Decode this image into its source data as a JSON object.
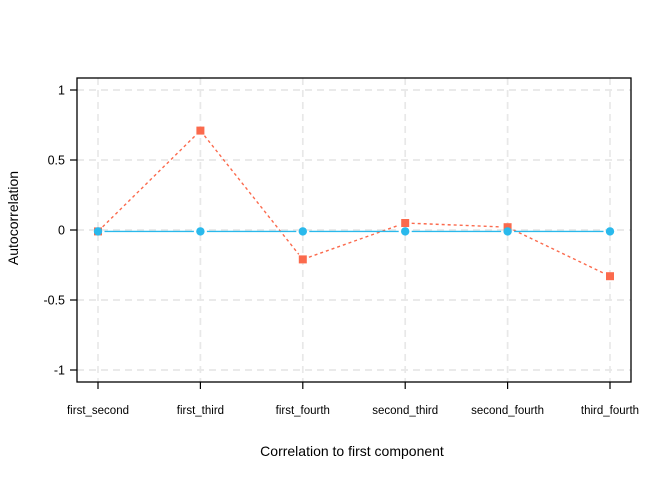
{
  "figure": {
    "background": "#ffffff"
  },
  "chart_data": {
    "type": "line",
    "title": "",
    "xlabel": "Correlation to first component",
    "ylabel": "Autocorrelation",
    "categories": [
      "first_second",
      "first_third",
      "first_fourth",
      "second_third",
      "second_fourth",
      "third_fourth"
    ],
    "series": [
      {
        "name": "red-squares-dashed",
        "color": "#FB6A4D",
        "marker": "square",
        "line_style": "dashed",
        "values": [
          -0.01,
          0.71,
          -0.21,
          0.05,
          0.02,
          -0.33
        ]
      },
      {
        "name": "cyan-circles-solid",
        "color": "#29B9EC",
        "marker": "circle",
        "line_style": "solid",
        "values": [
          -0.01,
          -0.01,
          -0.01,
          -0.01,
          -0.01,
          -0.01
        ]
      }
    ],
    "yticks": [
      -1,
      -0.5,
      0,
      0.5,
      1
    ],
    "ytick_labels": [
      "-1",
      "-0.5",
      "0",
      "0.5",
      "1"
    ],
    "ylim": [
      -1.086,
      1.086
    ],
    "grid": "dashed-both-directions",
    "grid_color": "#E8E8E8",
    "border_color": "#000000",
    "legend": "none"
  }
}
